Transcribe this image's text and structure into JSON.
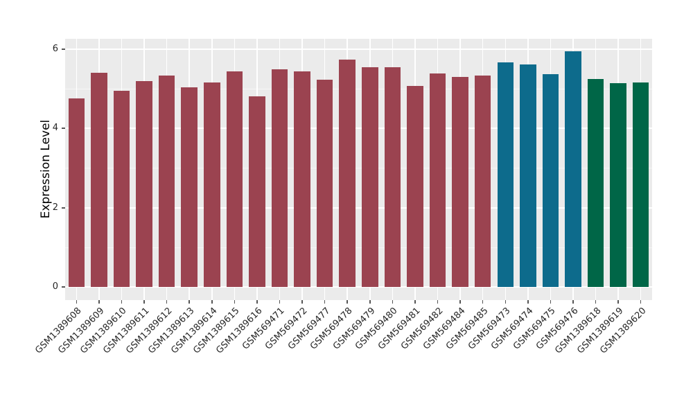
{
  "chart_data": {
    "type": "bar",
    "title": "",
    "xlabel": "",
    "ylabel": "Expression Level",
    "ylim": [
      -0.33,
      6.26
    ],
    "y_major_ticks": [
      0,
      2,
      4,
      6
    ],
    "y_minor_ticks": [
      1,
      3,
      5
    ],
    "grid": "on, white on grey panel (ggplot style)",
    "legend_position": "none",
    "categories": [
      "GSM1389608",
      "GSM1389609",
      "GSM1389610",
      "GSM1389611",
      "GSM1389612",
      "GSM1389613",
      "GSM1389614",
      "GSM1389615",
      "GSM1389616",
      "GSM569471",
      "GSM569472",
      "GSM569477",
      "GSM569478",
      "GSM569479",
      "GSM569480",
      "GSM569481",
      "GSM569482",
      "GSM569484",
      "GSM569485",
      "GSM569473",
      "GSM569474",
      "GSM569475",
      "GSM569476",
      "GSM1389618",
      "GSM1389619",
      "GSM1389620"
    ],
    "values": [
      4.76,
      5.4,
      4.95,
      5.19,
      5.33,
      5.04,
      5.16,
      5.43,
      4.81,
      5.49,
      5.43,
      5.23,
      5.73,
      5.54,
      5.55,
      5.07,
      5.39,
      5.3,
      5.33,
      5.66,
      5.62,
      5.37,
      5.94,
      5.25,
      5.14,
      5.16
    ],
    "groups": [
      "red",
      "red",
      "red",
      "red",
      "red",
      "red",
      "red",
      "red",
      "red",
      "red",
      "red",
      "red",
      "red",
      "red",
      "red",
      "red",
      "red",
      "red",
      "red",
      "blue",
      "blue",
      "blue",
      "blue",
      "green",
      "green",
      "green"
    ],
    "group_colors": {
      "red": "#9B4350",
      "blue": "#0D6B8C",
      "green": "#006647"
    }
  },
  "colors": {
    "panel_bg": "#EBEBEB",
    "grid": "#FFFFFF",
    "tick_mark": "#555555",
    "tick_text": "#262626",
    "axis_title_text": "#000000",
    "page_bg": "#FFFFFF"
  }
}
